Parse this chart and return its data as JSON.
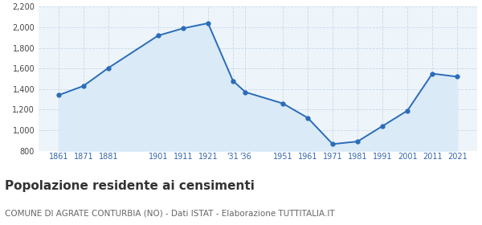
{
  "years": [
    1861,
    1871,
    1881,
    1901,
    1911,
    1921,
    1931,
    1936,
    1951,
    1961,
    1971,
    1981,
    1991,
    2001,
    2011,
    2021
  ],
  "population": [
    1340,
    1430,
    1605,
    1920,
    1990,
    2040,
    1480,
    1370,
    1260,
    1120,
    865,
    890,
    1040,
    1190,
    1550,
    1520
  ],
  "xtick_pos": [
    1861,
    1871,
    1881,
    1901,
    1911,
    1921,
    1931,
    1936,
    1951,
    1961,
    1971,
    1981,
    1991,
    2001,
    2011,
    2021
  ],
  "xtick_labels": [
    "1861",
    "1871",
    "1881",
    "1901",
    "1911",
    "1921",
    "'31",
    "'36",
    "1951",
    "1961",
    "1971",
    "1981",
    "1991",
    "2001",
    "2011",
    "2021"
  ],
  "yticks": [
    800,
    1000,
    1200,
    1400,
    1600,
    1800,
    2000,
    2200
  ],
  "ylim": [
    800,
    2200
  ],
  "xlim": [
    1853,
    2029
  ],
  "line_color": "#2b6cb8",
  "fill_color": "#daeaf7",
  "bg_color": "#edf5fb",
  "grid_color": "#c8d8e8",
  "title": "Popolazione residente ai censimenti",
  "subtitle": "COMUNE DI AGRATE CONTURBIA (NO) - Dati ISTAT - Elaborazione TUTTITALIA.IT",
  "title_fontsize": 11,
  "subtitle_fontsize": 7.5,
  "tick_fontsize": 7,
  "ytick_fontsize": 7
}
